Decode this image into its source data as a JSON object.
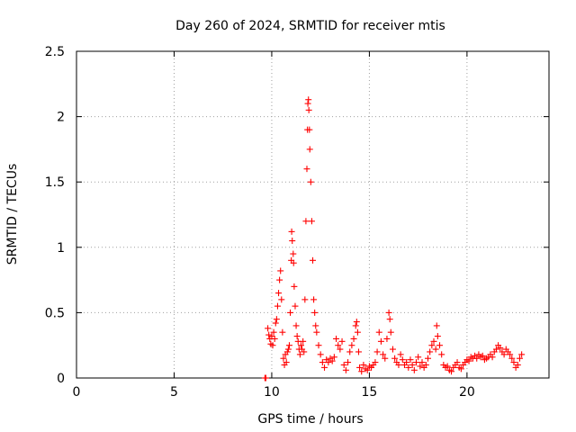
{
  "chart_data": {
    "type": "scatter",
    "title": "Day 260 of 2024, SRMTID for receiver mtis",
    "xlabel": "GPS time / hours",
    "ylabel": "SRMTID / TECUs",
    "xlim": [
      0,
      24.2
    ],
    "ylim": [
      0,
      2.5
    ],
    "xticks": [
      0,
      5,
      10,
      15,
      20
    ],
    "yticks": [
      0,
      0.5,
      1,
      1.5,
      2,
      2.5
    ],
    "xtick_labels": [
      "0",
      "5",
      "10",
      "15",
      "20"
    ],
    "ytick_labels": [
      "0",
      "0.5",
      "1",
      "1.5",
      "2",
      "2.5"
    ],
    "grid": true,
    "marker": "plus",
    "colors": {
      "series": "#ff0000"
    },
    "series": [
      {
        "points": [
          [
            9.65,
            0.0
          ],
          [
            9.7,
            0.0
          ],
          [
            9.8,
            0.38
          ],
          [
            9.85,
            0.33
          ],
          [
            9.9,
            0.3
          ],
          [
            9.95,
            0.26
          ],
          [
            10.0,
            0.32
          ],
          [
            10.05,
            0.25
          ],
          [
            10.1,
            0.35
          ],
          [
            10.15,
            0.3
          ],
          [
            10.2,
            0.42
          ],
          [
            10.25,
            0.45
          ],
          [
            10.3,
            0.55
          ],
          [
            10.35,
            0.65
          ],
          [
            10.4,
            0.75
          ],
          [
            10.45,
            0.82
          ],
          [
            10.5,
            0.6
          ],
          [
            10.55,
            0.35
          ],
          [
            10.6,
            0.15
          ],
          [
            10.65,
            0.1
          ],
          [
            10.7,
            0.18
          ],
          [
            10.75,
            0.12
          ],
          [
            10.8,
            0.2
          ],
          [
            10.85,
            0.22
          ],
          [
            10.9,
            0.25
          ],
          [
            10.95,
            0.5
          ],
          [
            11.0,
            0.9
          ],
          [
            11.02,
            1.12
          ],
          [
            11.05,
            1.05
          ],
          [
            11.1,
            0.95
          ],
          [
            11.12,
            0.88
          ],
          [
            11.15,
            0.7
          ],
          [
            11.2,
            0.55
          ],
          [
            11.25,
            0.4
          ],
          [
            11.3,
            0.32
          ],
          [
            11.35,
            0.28
          ],
          [
            11.4,
            0.22
          ],
          [
            11.45,
            0.18
          ],
          [
            11.5,
            0.25
          ],
          [
            11.55,
            0.22
          ],
          [
            11.6,
            0.28
          ],
          [
            11.65,
            0.2
          ],
          [
            11.7,
            0.6
          ],
          [
            11.75,
            1.2
          ],
          [
            11.8,
            1.6
          ],
          [
            11.83,
            1.9
          ],
          [
            11.85,
            2.1
          ],
          [
            11.88,
            2.13
          ],
          [
            11.9,
            2.05
          ],
          [
            11.93,
            1.9
          ],
          [
            11.95,
            1.75
          ],
          [
            12.0,
            1.5
          ],
          [
            12.05,
            1.2
          ],
          [
            12.1,
            0.9
          ],
          [
            12.15,
            0.6
          ],
          [
            12.2,
            0.5
          ],
          [
            12.25,
            0.4
          ],
          [
            12.3,
            0.35
          ],
          [
            12.4,
            0.25
          ],
          [
            12.5,
            0.18
          ],
          [
            12.6,
            0.12
          ],
          [
            12.7,
            0.08
          ],
          [
            12.8,
            0.14
          ],
          [
            12.9,
            0.12
          ],
          [
            13.0,
            0.15
          ],
          [
            13.1,
            0.13
          ],
          [
            13.2,
            0.16
          ],
          [
            13.3,
            0.3
          ],
          [
            13.4,
            0.25
          ],
          [
            13.5,
            0.22
          ],
          [
            13.6,
            0.28
          ],
          [
            13.7,
            0.1
          ],
          [
            13.8,
            0.06
          ],
          [
            13.9,
            0.12
          ],
          [
            14.0,
            0.2
          ],
          [
            14.1,
            0.25
          ],
          [
            14.2,
            0.3
          ],
          [
            14.3,
            0.4
          ],
          [
            14.35,
            0.43
          ],
          [
            14.4,
            0.35
          ],
          [
            14.45,
            0.2
          ],
          [
            14.5,
            0.08
          ],
          [
            14.6,
            0.05
          ],
          [
            14.7,
            0.1
          ],
          [
            14.8,
            0.07
          ],
          [
            14.9,
            0.06
          ],
          [
            15.0,
            0.09
          ],
          [
            15.1,
            0.08
          ],
          [
            15.2,
            0.1
          ],
          [
            15.3,
            0.12
          ],
          [
            15.4,
            0.2
          ],
          [
            15.5,
            0.35
          ],
          [
            15.6,
            0.28
          ],
          [
            15.7,
            0.18
          ],
          [
            15.8,
            0.15
          ],
          [
            15.9,
            0.3
          ],
          [
            16.0,
            0.5
          ],
          [
            16.05,
            0.45
          ],
          [
            16.1,
            0.35
          ],
          [
            16.2,
            0.22
          ],
          [
            16.3,
            0.15
          ],
          [
            16.4,
            0.12
          ],
          [
            16.5,
            0.1
          ],
          [
            16.6,
            0.18
          ],
          [
            16.7,
            0.14
          ],
          [
            16.8,
            0.1
          ],
          [
            16.9,
            0.12
          ],
          [
            17.0,
            0.08
          ],
          [
            17.1,
            0.14
          ],
          [
            17.2,
            0.1
          ],
          [
            17.3,
            0.06
          ],
          [
            17.4,
            0.12
          ],
          [
            17.5,
            0.16
          ],
          [
            17.6,
            0.09
          ],
          [
            17.7,
            0.12
          ],
          [
            17.8,
            0.08
          ],
          [
            17.9,
            0.1
          ],
          [
            18.0,
            0.15
          ],
          [
            18.1,
            0.2
          ],
          [
            18.2,
            0.25
          ],
          [
            18.3,
            0.28
          ],
          [
            18.4,
            0.22
          ],
          [
            18.45,
            0.4
          ],
          [
            18.5,
            0.32
          ],
          [
            18.6,
            0.25
          ],
          [
            18.7,
            0.18
          ],
          [
            18.8,
            0.1
          ],
          [
            18.9,
            0.08
          ],
          [
            19.0,
            0.09
          ],
          [
            19.1,
            0.06
          ],
          [
            19.2,
            0.05
          ],
          [
            19.3,
            0.08
          ],
          [
            19.4,
            0.1
          ],
          [
            19.5,
            0.12
          ],
          [
            19.6,
            0.08
          ],
          [
            19.7,
            0.07
          ],
          [
            19.8,
            0.1
          ],
          [
            19.9,
            0.12
          ],
          [
            20.0,
            0.14
          ],
          [
            20.1,
            0.13
          ],
          [
            20.2,
            0.16
          ],
          [
            20.3,
            0.15
          ],
          [
            20.4,
            0.17
          ],
          [
            20.5,
            0.15
          ],
          [
            20.6,
            0.18
          ],
          [
            20.7,
            0.16
          ],
          [
            20.8,
            0.17
          ],
          [
            20.9,
            0.14
          ],
          [
            21.0,
            0.15
          ],
          [
            21.1,
            0.16
          ],
          [
            21.2,
            0.18
          ],
          [
            21.3,
            0.16
          ],
          [
            21.4,
            0.2
          ],
          [
            21.5,
            0.22
          ],
          [
            21.6,
            0.25
          ],
          [
            21.7,
            0.23
          ],
          [
            21.8,
            0.2
          ],
          [
            21.9,
            0.18
          ],
          [
            22.0,
            0.22
          ],
          [
            22.1,
            0.2
          ],
          [
            22.2,
            0.18
          ],
          [
            22.3,
            0.15
          ],
          [
            22.4,
            0.12
          ],
          [
            22.5,
            0.08
          ],
          [
            22.6,
            0.1
          ],
          [
            22.7,
            0.15
          ],
          [
            22.8,
            0.18
          ]
        ]
      }
    ]
  }
}
